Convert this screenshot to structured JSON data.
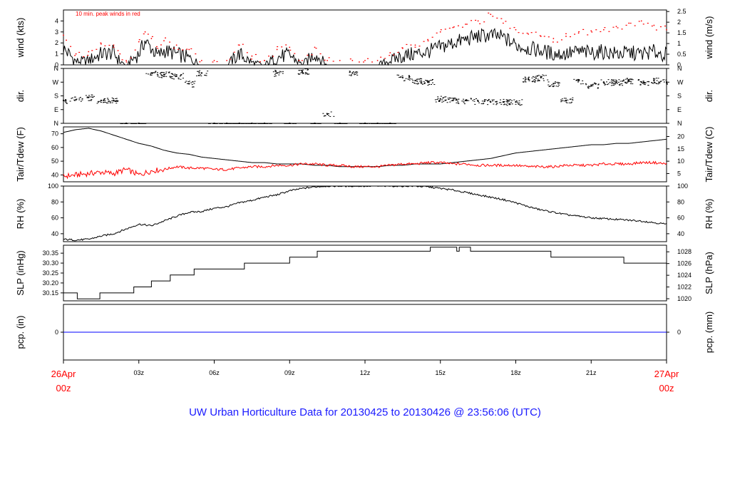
{
  "title": "UW Urban Horticulture Data for 20130425  to  20130426 @ 23:56:06  (UTC)",
  "colors": {
    "axis": "#000000",
    "series_main": "#000000",
    "series_alt": "#ff0000",
    "precip": "#0000ff",
    "date_label": "#ff0000",
    "title": "#1a1aff"
  },
  "x_axis": {
    "range_hours": [
      0,
      24
    ],
    "ticks": [
      {
        "hour": 3,
        "label": "03z"
      },
      {
        "hour": 6,
        "label": "06z"
      },
      {
        "hour": 9,
        "label": "09z"
      },
      {
        "hour": 12,
        "label": "12z"
      },
      {
        "hour": 15,
        "label": "15z"
      },
      {
        "hour": 18,
        "label": "18z"
      },
      {
        "hour": 21,
        "label": "21z"
      }
    ],
    "start_label": [
      "26Apr",
      "00z"
    ],
    "end_label": [
      "27Apr",
      "00z"
    ]
  },
  "chart_data": [
    {
      "type": "line",
      "panel": "wind",
      "left_label": "wind (kts)",
      "right_label": "wind (m/s)",
      "annotation": "10 min. peak winds in red",
      "ylim": [
        0,
        5
      ],
      "left_ticks": [
        "0",
        "1",
        "2",
        "3",
        "4"
      ],
      "right_ticks": [
        "0",
        "0.5",
        "1",
        "1.5",
        "2",
        "2.5"
      ],
      "right_tick_values": [
        0,
        0.5,
        1,
        1.5,
        2,
        2.5
      ],
      "right_conv": 0.5144,
      "x": [
        0,
        0.5,
        1,
        1.5,
        2,
        2.25,
        2.5,
        3,
        3.25,
        3.5,
        3.75,
        4,
        4.5,
        5,
        5.5,
        6,
        6.5,
        7,
        7.5,
        8,
        8.5,
        9,
        9.5,
        10,
        10.5,
        11,
        11.5,
        12,
        12.5,
        13,
        13.5,
        14,
        14.5,
        15,
        15.5,
        16,
        16.5,
        17,
        17.5,
        18,
        18.5,
        19,
        19.5,
        20,
        20.5,
        21,
        21.5,
        22,
        22.5,
        23,
        23.5,
        24
      ],
      "series": [
        {
          "name": "wind",
          "values": [
            1.5,
            0.3,
            0.4,
            1.0,
            1.1,
            0.3,
            0.0,
            1.0,
            2.2,
            1.5,
            0.8,
            1.3,
            1.0,
            0.6,
            0.0,
            0.0,
            0.0,
            1.0,
            0.2,
            0.0,
            0.7,
            0.9,
            0.0,
            1.0,
            0.0,
            0.0,
            0.0,
            0.0,
            0.0,
            0.4,
            0.8,
            1.0,
            1.2,
            1.6,
            2.0,
            2.3,
            2.6,
            2.7,
            2.5,
            1.8,
            1.5,
            1.3,
            1.0,
            1.0,
            1.2,
            1.1,
            1.2,
            1.0,
            1.1,
            1.0,
            1.2,
            0.9
          ]
        },
        {
          "name": "peak",
          "values": [
            2.7,
            1.0,
            1.2,
            1.9,
            1.8,
            1.0,
            0.4,
            2.1,
            3.0,
            2.4,
            1.5,
            2.2,
            1.8,
            1.4,
            0.4,
            0.4,
            0.4,
            1.8,
            0.8,
            0.4,
            1.4,
            1.6,
            0.4,
            1.6,
            0.4,
            0.4,
            0.4,
            0.4,
            0.4,
            1.1,
            1.5,
            1.8,
            2.3,
            3.0,
            3.4,
            3.7,
            4.0,
            4.6,
            3.8,
            3.2,
            2.8,
            2.6,
            2.4,
            2.6,
            2.9,
            3.1,
            3.2,
            3.5,
            3.8,
            4.0,
            3.6,
            3.2
          ]
        }
      ]
    },
    {
      "type": "scatter",
      "panel": "direction",
      "left_label": "dir.",
      "right_label": "dir.",
      "left_ticks": [
        "N",
        "E",
        "S",
        "W",
        "N"
      ],
      "right_ticks": [
        "N",
        "E",
        "S",
        "W",
        "N"
      ],
      "ylim": [
        0,
        360
      ],
      "x": [
        0,
        0.5,
        1,
        1.5,
        2,
        2.5,
        3,
        3.5,
        4,
        4.5,
        5,
        5.5,
        6,
        6.5,
        7,
        7.5,
        8,
        8.5,
        9,
        9.5,
        10,
        10.5,
        11,
        11.5,
        12,
        12.5,
        13,
        13.5,
        14,
        14.5,
        15,
        15.5,
        16,
        16.5,
        17,
        17.5,
        18,
        18.5,
        19,
        19.5,
        20,
        20.5,
        21,
        21.5,
        22,
        22.5,
        23,
        23.5,
        24
      ],
      "series": [
        {
          "name": "direction",
          "values": [
            150,
            155,
            170,
            150,
            150,
            0,
            0,
            330,
            320,
            310,
            260,
            330,
            0,
            0,
            0,
            0,
            0,
            330,
            0,
            340,
            0,
            60,
            0,
            330,
            0,
            0,
            0,
            300,
            280,
            270,
            160,
            150,
            150,
            145,
            140,
            140,
            140,
            290,
            300,
            260,
            150,
            280,
            250,
            270,
            270,
            280,
            270,
            280,
            270
          ]
        }
      ]
    },
    {
      "type": "line",
      "panel": "temperature",
      "left_label": "Tair/Tdew (F)",
      "right_label": "Tair/Tdew (C)",
      "ylim": [
        35,
        75
      ],
      "left_ticks": [
        "40",
        "50",
        "60",
        "70"
      ],
      "right_ticks": [
        "5",
        "10",
        "15",
        "20"
      ],
      "right_tick_values": [
        5,
        10,
        15,
        20
      ],
      "x": [
        0,
        0.5,
        1,
        1.5,
        2,
        2.5,
        3,
        3.5,
        4,
        4.5,
        5,
        5.5,
        6,
        6.5,
        7,
        7.5,
        8,
        8.5,
        9,
        9.5,
        10,
        10.5,
        11,
        11.5,
        12,
        12.5,
        13,
        13.5,
        14,
        14.5,
        15,
        15.5,
        16,
        16.5,
        17,
        17.5,
        18,
        18.5,
        19,
        19.5,
        20,
        20.5,
        21,
        21.5,
        22,
        22.5,
        23,
        23.5,
        24
      ],
      "series": [
        {
          "name": "Tair",
          "values": [
            71,
            73,
            74,
            72,
            69,
            66,
            63,
            61,
            58,
            56,
            55,
            53,
            52,
            51,
            50,
            49,
            49,
            48,
            48,
            48,
            47,
            47,
            46,
            46,
            46,
            46,
            47,
            47,
            48,
            48,
            48,
            49,
            50,
            51,
            52,
            54,
            56,
            57,
            58,
            59,
            60,
            61,
            62,
            62,
            63,
            63,
            64,
            65,
            66
          ]
        },
        {
          "name": "Tdew",
          "values": [
            39,
            40,
            41,
            42,
            41,
            44,
            40,
            43,
            44,
            46,
            45,
            45,
            44,
            44,
            45,
            46,
            46,
            47,
            47,
            48,
            48,
            47,
            47,
            46,
            46,
            46,
            47,
            48,
            48,
            49,
            49,
            48,
            48,
            47,
            47,
            47,
            47,
            46,
            46,
            46,
            47,
            47,
            47,
            48,
            48,
            48,
            49,
            49,
            48
          ]
        }
      ]
    },
    {
      "type": "line",
      "panel": "humidity",
      "left_label": "RH (%)",
      "right_label": "RH (%)",
      "ylim": [
        30,
        100
      ],
      "left_ticks": [
        "40",
        "60",
        "80",
        "100"
      ],
      "right_ticks": [
        "40",
        "60",
        "80",
        "100"
      ],
      "x": [
        0,
        0.5,
        1,
        1.5,
        2,
        2.5,
        3,
        3.5,
        4,
        4.5,
        5,
        5.5,
        6,
        6.5,
        7,
        7.5,
        8,
        8.5,
        9,
        9.5,
        10,
        10.5,
        11,
        11.5,
        12,
        12.5,
        13,
        13.5,
        14,
        14.5,
        15,
        15.5,
        16,
        16.5,
        17,
        17.5,
        18,
        18.5,
        19,
        19.5,
        20,
        20.5,
        21,
        21.5,
        22,
        22.5,
        23,
        23.5,
        24
      ],
      "series": [
        {
          "name": "RH",
          "values": [
            33,
            32,
            33,
            37,
            40,
            46,
            52,
            50,
            56,
            62,
            67,
            68,
            72,
            74,
            79,
            82,
            86,
            89,
            94,
            97,
            99,
            100,
            100,
            100,
            100,
            100,
            100,
            100,
            100,
            99,
            97,
            95,
            92,
            89,
            86,
            83,
            79,
            74,
            70,
            67,
            64,
            62,
            60,
            59,
            58,
            57,
            56,
            54,
            52
          ]
        }
      ]
    },
    {
      "type": "line",
      "panel": "pressure",
      "left_label": "SLP (inHg)",
      "right_label": "SLP (hPa)",
      "ylim": [
        30.11,
        30.39
      ],
      "left_ticks": [
        "30.15",
        "30.20",
        "30.25",
        "30.30",
        "30.35"
      ],
      "right_ticks": [
        "1020",
        "1022",
        "1024",
        "1026",
        "1028"
      ],
      "right_tick_values": [
        1020,
        1022,
        1024,
        1026,
        1028
      ],
      "x": [
        0,
        0.55,
        1.45,
        2.8,
        3.5,
        4.25,
        5.2,
        7.2,
        9.0,
        10.1,
        14.6,
        15.65,
        15.75,
        16.2,
        19.4,
        22.3,
        24
      ],
      "series": [
        {
          "name": "SLP",
          "values": [
            30.15,
            30.12,
            30.15,
            30.18,
            30.21,
            30.24,
            30.27,
            30.3,
            30.33,
            30.36,
            30.38,
            30.36,
            30.38,
            30.36,
            30.33,
            30.3,
            30.3
          ]
        }
      ]
    },
    {
      "type": "line",
      "panel": "precipitation",
      "left_label": "pcp. (in)",
      "right_label": "pcp. (mm)",
      "ylim": [
        -1,
        1
      ],
      "left_ticks": [
        "0"
      ],
      "right_ticks": [
        "0"
      ],
      "x": [
        0,
        24
      ],
      "series": [
        {
          "name": "precipitation",
          "values": [
            0,
            0
          ]
        }
      ]
    }
  ]
}
